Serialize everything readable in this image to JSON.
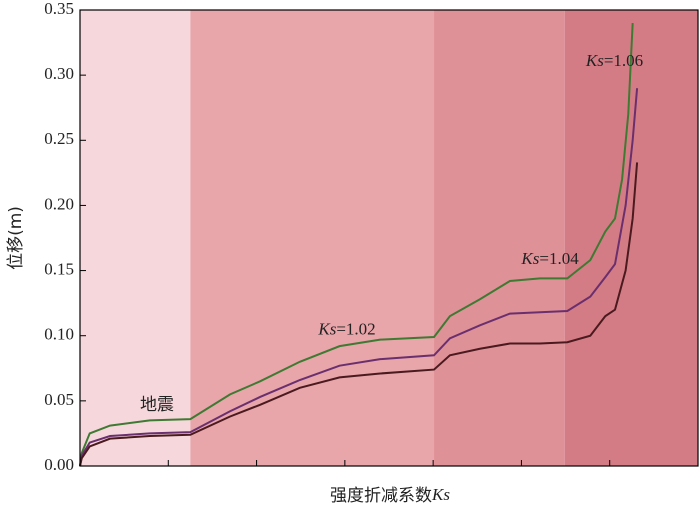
{
  "chart_data": {
    "type": "line",
    "y_label": "位移(m)",
    "x_label": {
      "text": "强度折减系数",
      "italic": "Ks"
    },
    "xlim": [
      0,
      7
    ],
    "xticks": [
      1,
      2,
      3,
      4,
      5,
      6
    ],
    "ylim": [
      0,
      0.35
    ],
    "yticks": [
      {
        "value": 0,
        "label": "0.00"
      },
      {
        "value": 0.05,
        "label": "0.05"
      },
      {
        "value": 0.1,
        "label": "0.10"
      },
      {
        "value": 0.15,
        "label": "0.15"
      },
      {
        "value": 0.2,
        "label": "0.20"
      },
      {
        "value": 0.25,
        "label": "0.25"
      },
      {
        "value": 0.3,
        "label": "0.30"
      },
      {
        "value": 0.35,
        "label": "0.35"
      }
    ],
    "regions": [
      {
        "x": [
          0,
          1.25
        ],
        "color": "#f6d8dc"
      },
      {
        "x": [
          1.25,
          4.01
        ],
        "color": "#e8a5aa"
      },
      {
        "x": [
          4.01,
          5.49
        ],
        "color": "#df9198"
      },
      {
        "x": [
          5.49,
          7
        ],
        "color": "#d47c85"
      }
    ],
    "annotations": [
      {
        "text": "地震",
        "x": 0.68,
        "y": 0.047
      },
      {
        "italic": "Ks",
        "text": "=1.02",
        "x": 2.7,
        "y": 0.104
      },
      {
        "italic": "Ks",
        "text": "=1.04",
        "x": 5.0,
        "y": 0.158
      },
      {
        "italic": "Ks",
        "text": "=1.06",
        "x": 5.73,
        "y": 0.31
      }
    ],
    "series": [
      {
        "color": "#3f7a32",
        "x": [
          0,
          0.02,
          0.11,
          0.34,
          0.79,
          1.25,
          1.7,
          2.04,
          2.49,
          2.94,
          3.4,
          4.01,
          4.19,
          4.53,
          4.87,
          5.21,
          5.52,
          5.78,
          5.95,
          6.06,
          6.14,
          6.21,
          6.26
        ],
        "values": [
          0,
          0.01,
          0.025,
          0.031,
          0.035,
          0.036,
          0.055,
          0.065,
          0.08,
          0.092,
          0.097,
          0.099,
          0.115,
          0.128,
          0.142,
          0.144,
          0.144,
          0.158,
          0.18,
          0.19,
          0.22,
          0.27,
          0.34
        ]
      },
      {
        "color": "#6a2f6e",
        "x": [
          0,
          0.02,
          0.11,
          0.34,
          0.79,
          1.25,
          1.7,
          2.04,
          2.49,
          2.94,
          3.4,
          4.01,
          4.19,
          4.53,
          4.87,
          5.21,
          5.52,
          5.78,
          5.95,
          6.06,
          6.18,
          6.26,
          6.31
        ],
        "values": [
          0,
          0.008,
          0.018,
          0.023,
          0.025,
          0.026,
          0.042,
          0.053,
          0.066,
          0.077,
          0.082,
          0.085,
          0.098,
          0.108,
          0.117,
          0.118,
          0.119,
          0.13,
          0.145,
          0.155,
          0.2,
          0.25,
          0.29
        ]
      },
      {
        "color": "#4a1a1e",
        "x": [
          0,
          0.02,
          0.11,
          0.34,
          0.79,
          1.25,
          1.7,
          2.04,
          2.49,
          2.94,
          3.4,
          4.01,
          4.19,
          4.53,
          4.87,
          5.21,
          5.52,
          5.78,
          5.95,
          6.06,
          6.18,
          6.26,
          6.31
        ],
        "values": [
          0,
          0.006,
          0.015,
          0.021,
          0.023,
          0.024,
          0.038,
          0.047,
          0.06,
          0.068,
          0.071,
          0.074,
          0.085,
          0.09,
          0.094,
          0.094,
          0.095,
          0.1,
          0.115,
          0.12,
          0.15,
          0.19,
          0.233
        ]
      }
    ]
  }
}
